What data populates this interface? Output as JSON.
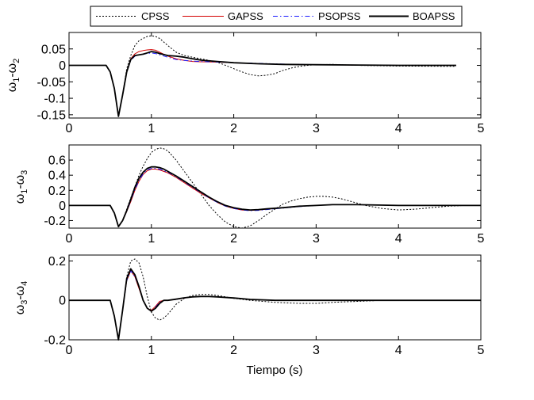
{
  "chart_data": {
    "type": "line",
    "xlabel": "Tiempo (s)",
    "xlim": [
      0,
      5
    ],
    "xticks": [
      0,
      1,
      2,
      3,
      4,
      5
    ],
    "legend": {
      "placement": "top",
      "entries": [
        {
          "name": "CPSS",
          "style": "dotted",
          "color": "#000000"
        },
        {
          "name": "GAPSS",
          "style": "solid",
          "color": "#d40000"
        },
        {
          "name": "PSOPSS",
          "style": "dashdot",
          "color": "#1a1aff"
        },
        {
          "name": "BOAPSS",
          "style": "solid-thick",
          "color": "#000000"
        }
      ]
    },
    "panels": [
      {
        "ylabel_main": "ω",
        "ylabel_sub1": "1",
        "ylabel_dash": "-ω",
        "ylabel_sub2": "2",
        "ylim": [
          -0.16,
          0.1
        ],
        "yticks": [
          0.05,
          0,
          -0.05,
          -0.1,
          -0.15
        ],
        "ytick_labels": [
          "0.05",
          "0",
          "-0.05",
          "-0.1",
          "-0.15"
        ],
        "series": [
          {
            "name": "CPSS",
            "x": [
              0,
              0.45,
              0.5,
              0.55,
              0.6,
              0.65,
              0.7,
              0.75,
              0.8,
              0.85,
              0.9,
              0.95,
              1.0,
              1.05,
              1.1,
              1.2,
              1.3,
              1.4,
              1.5,
              1.6,
              1.7,
              1.8,
              1.9,
              2.0,
              2.1,
              2.2,
              2.3,
              2.4,
              2.5,
              2.6,
              2.7,
              2.8,
              2.9,
              3.0,
              3.2,
              3.5,
              4.0,
              4.7
            ],
            "y": [
              0,
              0,
              -0.02,
              -0.07,
              -0.155,
              -0.09,
              -0.01,
              0.03,
              0.06,
              0.075,
              0.082,
              0.088,
              0.09,
              0.088,
              0.082,
              0.06,
              0.04,
              0.03,
              0.025,
              0.02,
              0.015,
              0.01,
              0.0,
              -0.01,
              -0.02,
              -0.028,
              -0.032,
              -0.03,
              -0.025,
              -0.015,
              -0.008,
              -0.003,
              0.0,
              0.002,
              0.003,
              0.0,
              -0.002,
              -0.003
            ]
          },
          {
            "name": "GAPSS",
            "x": [
              0,
              0.45,
              0.5,
              0.55,
              0.6,
              0.65,
              0.7,
              0.75,
              0.8,
              0.85,
              0.9,
              0.95,
              1.0,
              1.05,
              1.1,
              1.2,
              1.3,
              1.4,
              1.5,
              1.6,
              1.8,
              2.0,
              2.3,
              2.6,
              3.0,
              3.5,
              4.0,
              4.7
            ],
            "y": [
              0,
              0,
              -0.02,
              -0.07,
              -0.155,
              -0.09,
              -0.02,
              0.02,
              0.035,
              0.042,
              0.045,
              0.047,
              0.048,
              0.046,
              0.04,
              0.028,
              0.02,
              0.015,
              0.012,
              0.011,
              0.01,
              0.008,
              0.005,
              0.003,
              0.002,
              0.001,
              0,
              0
            ]
          },
          {
            "name": "PSOPSS",
            "x": [
              0,
              0.45,
              0.5,
              0.55,
              0.6,
              0.65,
              0.7,
              0.75,
              0.8,
              0.85,
              0.9,
              0.95,
              1.0,
              1.05,
              1.1,
              1.2,
              1.3,
              1.4,
              1.5,
              1.6,
              1.8,
              2.0,
              2.3,
              2.6,
              3.0,
              3.5,
              4.0,
              4.7
            ],
            "y": [
              0,
              0,
              -0.02,
              -0.07,
              -0.155,
              -0.09,
              -0.02,
              0.015,
              0.028,
              0.032,
              0.034,
              0.036,
              0.038,
              0.036,
              0.032,
              0.025,
              0.018,
              0.015,
              0.013,
              0.012,
              0.01,
              0.008,
              0.006,
              0.004,
              0.002,
              0.001,
              0,
              0
            ]
          },
          {
            "name": "BOAPSS",
            "x": [
              0,
              0.45,
              0.5,
              0.55,
              0.6,
              0.65,
              0.7,
              0.75,
              0.8,
              0.85,
              0.9,
              0.95,
              1.0,
              1.05,
              1.1,
              1.2,
              1.3,
              1.4,
              1.5,
              1.6,
              1.8,
              2.0,
              2.3,
              2.6,
              3.0,
              3.5,
              4.0,
              4.7
            ],
            "y": [
              0,
              0,
              -0.02,
              -0.07,
              -0.155,
              -0.09,
              -0.02,
              0.018,
              0.03,
              0.032,
              0.034,
              0.038,
              0.042,
              0.04,
              0.036,
              0.03,
              0.028,
              0.025,
              0.02,
              0.016,
              0.012,
              0.008,
              0.005,
              0.003,
              0.002,
              0.001,
              0,
              0
            ]
          }
        ]
      },
      {
        "ylabel_main": "ω",
        "ylabel_sub1": "1",
        "ylabel_dash": "-ω",
        "ylabel_sub2": "3",
        "ylim": [
          -0.3,
          0.8
        ],
        "yticks": [
          0.6,
          0.4,
          0.2,
          0,
          -0.2
        ],
        "ytick_labels": [
          "0.6",
          "0.4",
          "0.2",
          "0",
          "-0.2"
        ],
        "series": [
          {
            "name": "CPSS",
            "x": [
              0,
              0.5,
              0.55,
              0.6,
              0.65,
              0.7,
              0.75,
              0.8,
              0.85,
              0.9,
              0.95,
              1.0,
              1.05,
              1.1,
              1.15,
              1.2,
              1.3,
              1.4,
              1.5,
              1.6,
              1.7,
              1.8,
              1.9,
              2.0,
              2.1,
              2.2,
              2.3,
              2.4,
              2.5,
              2.6,
              2.7,
              2.8,
              2.9,
              3.0,
              3.1,
              3.2,
              3.3,
              3.4,
              3.5,
              3.6,
              3.8,
              4.0,
              4.2,
              4.4,
              4.6,
              4.8,
              5.0
            ],
            "y": [
              0,
              0,
              -0.1,
              -0.28,
              -0.2,
              -0.05,
              0.1,
              0.25,
              0.4,
              0.52,
              0.62,
              0.7,
              0.74,
              0.76,
              0.75,
              0.72,
              0.6,
              0.45,
              0.3,
              0.15,
              0.0,
              -0.12,
              -0.22,
              -0.28,
              -0.3,
              -0.27,
              -0.2,
              -0.12,
              -0.05,
              0.02,
              0.06,
              0.09,
              0.11,
              0.12,
              0.12,
              0.11,
              0.09,
              0.06,
              0.03,
              0.0,
              -0.04,
              -0.06,
              -0.05,
              -0.03,
              -0.01,
              0.0,
              0.0
            ]
          },
          {
            "name": "GAPSS",
            "x": [
              0,
              0.5,
              0.55,
              0.6,
              0.65,
              0.7,
              0.75,
              0.8,
              0.85,
              0.9,
              0.95,
              1.0,
              1.05,
              1.1,
              1.15,
              1.2,
              1.3,
              1.4,
              1.5,
              1.6,
              1.7,
              1.8,
              1.9,
              2.0,
              2.1,
              2.2,
              2.3,
              2.4,
              2.6,
              2.8,
              3.0,
              3.2,
              3.5,
              4.0,
              4.5,
              5.0
            ],
            "y": [
              0,
              0,
              -0.1,
              -0.28,
              -0.2,
              -0.08,
              0.05,
              0.2,
              0.32,
              0.41,
              0.46,
              0.48,
              0.48,
              0.47,
              0.45,
              0.43,
              0.37,
              0.3,
              0.23,
              0.16,
              0.1,
              0.04,
              -0.01,
              -0.04,
              -0.06,
              -0.065,
              -0.06,
              -0.05,
              -0.03,
              -0.01,
              0.0,
              0.01,
              0.01,
              0.0,
              0.0,
              0.0
            ]
          },
          {
            "name": "PSOPSS",
            "x": [
              0,
              0.5,
              0.55,
              0.6,
              0.65,
              0.7,
              0.75,
              0.8,
              0.85,
              0.9,
              0.95,
              1.0,
              1.05,
              1.1,
              1.15,
              1.2,
              1.3,
              1.4,
              1.5,
              1.6,
              1.7,
              1.8,
              1.9,
              2.0,
              2.1,
              2.2,
              2.3,
              2.4,
              2.6,
              2.8,
              3.0,
              3.2,
              3.5,
              4.0,
              4.5,
              5.0
            ],
            "y": [
              0,
              0,
              -0.1,
              -0.28,
              -0.2,
              -0.08,
              0.06,
              0.21,
              0.33,
              0.42,
              0.47,
              0.49,
              0.49,
              0.48,
              0.46,
              0.44,
              0.38,
              0.31,
              0.24,
              0.17,
              0.1,
              0.04,
              -0.01,
              -0.04,
              -0.06,
              -0.07,
              -0.065,
              -0.055,
              -0.035,
              -0.015,
              0.0,
              0.01,
              0.01,
              0.0,
              0.0,
              0.0
            ]
          },
          {
            "name": "BOAPSS",
            "x": [
              0,
              0.5,
              0.55,
              0.6,
              0.65,
              0.7,
              0.75,
              0.8,
              0.85,
              0.9,
              0.95,
              1.0,
              1.05,
              1.1,
              1.15,
              1.2,
              1.3,
              1.4,
              1.5,
              1.6,
              1.7,
              1.8,
              1.9,
              2.0,
              2.1,
              2.2,
              2.3,
              2.4,
              2.6,
              2.8,
              3.0,
              3.2,
              3.5,
              4.0,
              4.5,
              5.0
            ],
            "y": [
              0,
              0,
              -0.1,
              -0.28,
              -0.2,
              -0.07,
              0.08,
              0.24,
              0.36,
              0.44,
              0.49,
              0.51,
              0.51,
              0.5,
              0.48,
              0.45,
              0.39,
              0.32,
              0.25,
              0.18,
              0.11,
              0.05,
              0.0,
              -0.03,
              -0.05,
              -0.06,
              -0.055,
              -0.045,
              -0.03,
              -0.01,
              0.0,
              0.01,
              0.01,
              0.0,
              0.0,
              0.0
            ]
          }
        ]
      },
      {
        "ylabel_main": "ω",
        "ylabel_sub1": "3",
        "ylabel_dash": "-ω",
        "ylabel_sub2": "4",
        "ylim": [
          -0.2,
          0.23
        ],
        "yticks": [
          0.2,
          0,
          -0.2
        ],
        "ytick_labels": [
          "0.2",
          "0",
          "-0.2"
        ],
        "series": [
          {
            "name": "CPSS",
            "x": [
              0,
              0.5,
              0.55,
              0.6,
              0.65,
              0.7,
              0.75,
              0.8,
              0.85,
              0.9,
              0.95,
              1.0,
              1.05,
              1.1,
              1.15,
              1.2,
              1.3,
              1.4,
              1.5,
              1.6,
              1.7,
              1.8,
              1.9,
              2.0,
              2.2,
              2.5,
              2.8,
              3.0,
              3.2,
              3.5,
              3.8,
              4.0,
              4.5,
              5.0
            ],
            "y": [
              0,
              0,
              -0.08,
              -0.2,
              -0.05,
              0.12,
              0.2,
              0.21,
              0.19,
              0.12,
              0.02,
              -0.06,
              -0.09,
              -0.1,
              -0.09,
              -0.07,
              -0.02,
              0.01,
              0.025,
              0.03,
              0.03,
              0.025,
              0.018,
              0.01,
              0.0,
              -0.01,
              -0.015,
              -0.015,
              -0.01,
              -0.005,
              0.0,
              0.0,
              0.0,
              0.0
            ]
          },
          {
            "name": "GAPSS",
            "x": [
              0,
              0.5,
              0.55,
              0.6,
              0.65,
              0.7,
              0.75,
              0.8,
              0.85,
              0.9,
              0.95,
              1.0,
              1.05,
              1.1,
              1.15,
              1.2,
              1.3,
              1.4,
              1.5,
              1.6,
              1.7,
              1.8,
              2.0,
              2.2,
              2.5,
              3.0,
              3.5,
              4.0,
              4.5,
              5.0
            ],
            "y": [
              0,
              0,
              -0.08,
              -0.2,
              -0.05,
              0.1,
              0.15,
              0.12,
              0.06,
              0.0,
              -0.04,
              -0.05,
              -0.03,
              -0.005,
              0.0,
              0.0,
              0.005,
              0.012,
              0.018,
              0.02,
              0.02,
              0.018,
              0.012,
              0.005,
              0.0,
              0.0,
              0.0,
              0.0,
              0.0,
              0.0
            ]
          },
          {
            "name": "PSOPSS",
            "x": [
              0,
              0.5,
              0.55,
              0.6,
              0.65,
              0.7,
              0.75,
              0.8,
              0.85,
              0.9,
              0.95,
              1.0,
              1.05,
              1.1,
              1.15,
              1.2,
              1.3,
              1.4,
              1.5,
              1.6,
              1.7,
              1.8,
              2.0,
              2.2,
              2.5,
              3.0,
              3.5,
              4.0,
              4.5,
              5.0
            ],
            "y": [
              0,
              0,
              -0.08,
              -0.2,
              -0.05,
              0.1,
              0.15,
              0.12,
              0.07,
              0.0,
              -0.04,
              -0.055,
              -0.035,
              -0.01,
              0.0,
              0.0,
              0.005,
              0.012,
              0.018,
              0.02,
              0.02,
              0.018,
              0.012,
              0.005,
              0.0,
              0.0,
              0.0,
              0.0,
              0.0,
              0.0
            ]
          },
          {
            "name": "BOAPSS",
            "x": [
              0,
              0.5,
              0.55,
              0.6,
              0.65,
              0.7,
              0.75,
              0.8,
              0.85,
              0.9,
              0.95,
              1.0,
              1.05,
              1.1,
              1.15,
              1.2,
              1.3,
              1.4,
              1.5,
              1.6,
              1.7,
              1.8,
              2.0,
              2.2,
              2.5,
              3.0,
              3.5,
              4.0,
              4.5,
              5.0
            ],
            "y": [
              0,
              0,
              -0.08,
              -0.2,
              -0.05,
              0.11,
              0.16,
              0.13,
              0.07,
              0.0,
              -0.04,
              -0.055,
              -0.04,
              -0.015,
              0.0,
              0.0,
              0.006,
              0.013,
              0.018,
              0.02,
              0.02,
              0.018,
              0.012,
              0.005,
              0.0,
              0.0,
              0.0,
              0.0,
              0.0,
              0.0
            ]
          }
        ]
      }
    ]
  }
}
